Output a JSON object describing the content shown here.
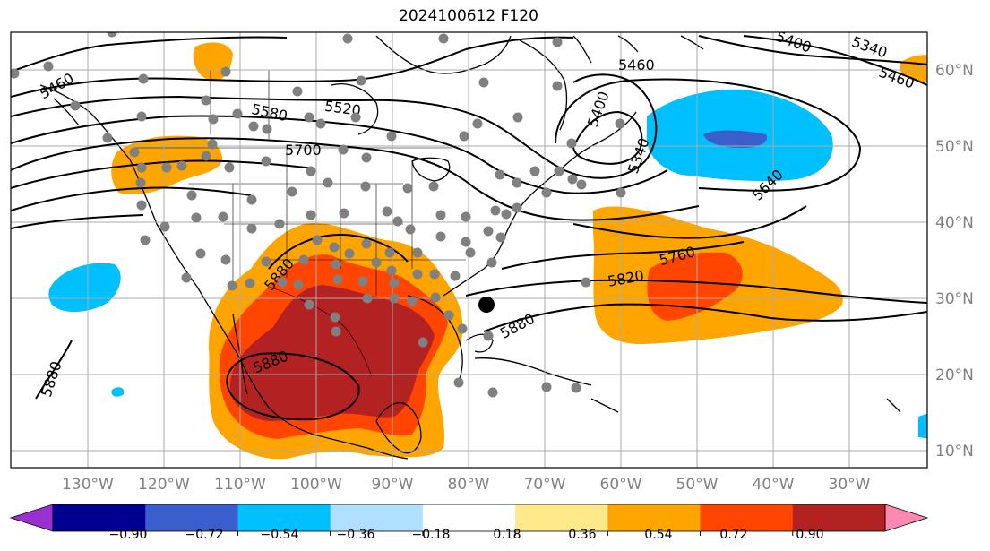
{
  "title": "2024100612 F120",
  "map": {
    "lon_labels": [
      "130°W",
      "120°W",
      "110°W",
      "100°W",
      "90°W",
      "80°W",
      "70°W",
      "60°W",
      "50°W",
      "40°W",
      "30°W"
    ],
    "lat_labels": [
      "60°N",
      "50°N",
      "40°N",
      "30°N",
      "20°N",
      "10°N"
    ],
    "contour_labels": [
      "5460",
      "5400",
      "5340",
      "5460",
      "5580",
      "5520",
      "5460",
      "5700",
      "5400",
      "5340",
      "5640",
      "5760",
      "5820",
      "5880",
      "5880",
      "5880",
      "5880"
    ],
    "contour_levels": [
      5340,
      5400,
      5460,
      5520,
      5580,
      5640,
      5700,
      5760,
      5820,
      5880
    ]
  },
  "colorbar": {
    "tick_labels": [
      "−0.90",
      "−0.72",
      "−0.54",
      "−0.36",
      "−0.18",
      "0.18",
      "0.36",
      "0.54",
      "0.72",
      "0.90"
    ],
    "colors": [
      "#9b30d0",
      "#000090",
      "#3a5fcd",
      "#00bfff",
      "#b0e0ff",
      "#ffffff",
      "#ffe98a",
      "#ffa500",
      "#ff4500",
      "#b22222",
      "#ff88b0"
    ]
  }
}
